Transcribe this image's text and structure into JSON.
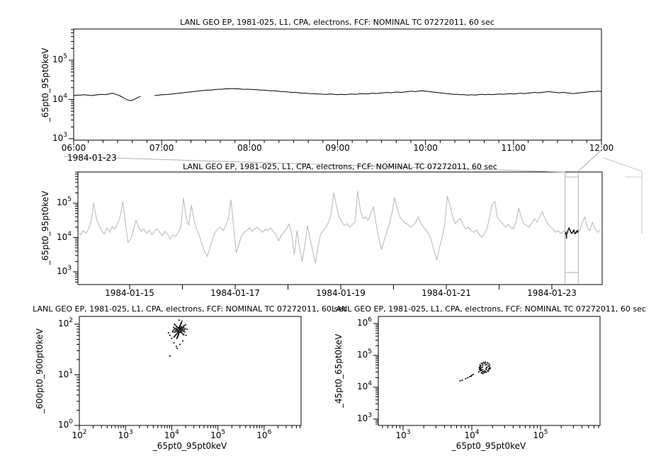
{
  "window": {
    "background": "#ffffff",
    "foreground": "#000000"
  },
  "colors": {
    "context_data": "#b6b6b6",
    "overview_overlay": "#b0b0b0",
    "highlight_data": "#000000"
  },
  "panels": {
    "zoom": {
      "title": "LANL GEO EP, 1981-025, L1, CPA, electrons, FCF: NOMINAL TC 07272011, 60 sec",
      "ylabel": "_65pt0_95pt0keV",
      "x_tick_labels": [
        "06:00",
        "07:00",
        "08:00",
        "09:00",
        "10:00",
        "11:00",
        "12:00"
      ],
      "x_context_label": "1984-01-23",
      "y_tick_exponents": [
        3,
        4,
        5
      ]
    },
    "context": {
      "title": "LANL GEO EP, 1981-025, L1, CPA, electrons, FCF: NOMINAL TC 07272011, 60 sec",
      "ylabel": "_65pt0_95pt0keV",
      "x_tick_labels": [
        "1984-01-15",
        "1984-01-17",
        "1984-01-19",
        "1984-01-21",
        "1984-01-23"
      ],
      "x_tick_days": [
        15,
        17,
        19,
        21,
        23
      ],
      "y_tick_exponents": [
        3,
        4,
        5
      ]
    },
    "scatter_left": {
      "title": "LANL GEO EP, 1981-025, L1, CPA, electrons, FCF: NOMINAL TC 07272011, 60 sec",
      "xlabel": "_65pt0_95pt0keV",
      "ylabel": "_600pt0_900pt0keV",
      "x_tick_exponents": [
        2,
        3,
        4,
        5,
        6
      ],
      "y_tick_exponents": [
        0,
        1,
        2
      ]
    },
    "scatter_right": {
      "title": "LANL GEO EP, 1981-025, L1, CPA, electrons, FCF: NOMINAL TC 07272011, 60 sec",
      "xlabel": "_65pt0_95pt0keV",
      "ylabel": "_45pt0_65pt0keV",
      "x_tick_exponents": [
        3,
        4,
        5
      ],
      "y_tick_exponents": [
        3,
        4,
        5,
        6
      ]
    }
  },
  "chart_data": [
    {
      "type": "line",
      "title": "LANL GEO EP, 1981-025, L1, CPA, electrons, FCF: NOMINAL TC 07272011, 60 sec",
      "ylabel": "_65pt0_95pt0keV",
      "x_unit": "hours UT on 1984-01-23",
      "xlim": [
        6,
        12
      ],
      "ylim_log10": [
        2.96,
        5.79
      ],
      "x_start": 6,
      "x_step": 0.04,
      "values_log10": [
        4.1,
        4.11,
        4.11,
        4.12,
        4.11,
        4.1,
        4.11,
        4.12,
        4.13,
        4.12,
        4.14,
        4.16,
        4.13,
        4.1,
        4.05,
        4.0,
        3.97,
        3.99,
        4.04,
        4.08,
        null,
        null,
        null,
        4.1,
        4.11,
        4.12,
        4.12,
        4.13,
        4.14,
        4.15,
        4.16,
        4.17,
        4.18,
        4.19,
        4.2,
        4.21,
        4.22,
        4.23,
        4.24,
        4.24,
        4.25,
        4.26,
        4.26,
        4.27,
        4.27,
        4.28,
        4.27,
        4.27,
        4.26,
        4.26,
        4.26,
        4.25,
        4.25,
        4.24,
        4.24,
        4.23,
        4.22,
        4.22,
        4.21,
        4.2,
        4.2,
        4.19,
        4.18,
        4.18,
        4.17,
        4.16,
        4.16,
        4.15,
        4.15,
        4.14,
        4.14,
        4.13,
        4.13,
        4.14,
        4.13,
        4.12,
        4.13,
        4.12,
        4.13,
        4.14,
        4.13,
        4.14,
        4.15,
        4.14,
        4.15,
        4.16,
        4.15,
        4.16,
        4.17,
        4.18,
        4.17,
        4.18,
        4.19,
        4.18,
        4.19,
        4.2,
        4.21,
        4.2,
        4.21,
        4.22,
        4.21,
        4.2,
        4.19,
        4.18,
        4.17,
        4.16,
        4.15,
        4.14,
        4.13,
        4.13,
        4.12,
        4.12,
        4.11,
        4.12,
        4.11,
        4.12,
        4.13,
        4.12,
        4.13,
        4.12,
        4.13,
        4.14,
        4.13,
        4.14,
        4.15,
        4.14,
        4.15,
        4.16,
        4.15,
        4.16,
        4.17,
        4.18,
        4.17,
        4.18,
        4.19,
        4.2,
        4.19,
        4.18,
        4.17,
        4.18,
        4.17,
        4.16,
        4.15,
        4.16,
        4.17,
        4.18,
        4.19,
        4.2,
        4.2,
        4.21,
        4.2
      ]
    },
    {
      "type": "line",
      "title": "LANL GEO EP, 1981-025, L1, CPA, electrons, FCF: NOMINAL TC 07272011, 60 sec",
      "ylabel": "_65pt0_95pt0keV",
      "x_unit": "day of 1984-01",
      "xlim": [
        14.02,
        23.95
      ],
      "ylim_log10": [
        2.63,
        5.91
      ],
      "x_start": 14.02,
      "x_step": 0.05,
      "highlight_interval_days": [
        23.25,
        23.5
      ],
      "values_log10": [
        4.15,
        4.08,
        4.2,
        4.12,
        4.25,
        4.45,
        5.0,
        4.55,
        4.35,
        4.2,
        4.1,
        4.28,
        4.15,
        4.32,
        4.25,
        4.4,
        4.6,
        5.05,
        4.4,
        3.85,
        3.95,
        4.2,
        4.5,
        4.3,
        4.18,
        4.25,
        4.12,
        4.22,
        4.08,
        4.18,
        4.25,
        4.15,
        4.05,
        4.18,
        4.1,
        3.95,
        4.08,
        4.02,
        4.15,
        4.3,
        5.15,
        4.6,
        4.35,
        4.95,
        4.5,
        4.25,
        4.05,
        3.8,
        3.6,
        3.45,
        3.7,
        3.95,
        4.15,
        4.25,
        4.3,
        4.2,
        4.35,
        4.55,
        5.1,
        4.3,
        3.55,
        3.8,
        4.05,
        4.15,
        4.2,
        4.28,
        4.18,
        4.25,
        4.3,
        4.22,
        4.15,
        4.25,
        4.2,
        4.28,
        4.18,
        4.1,
        3.9,
        4.05,
        4.15,
        4.25,
        4.4,
        4.1,
        3.5,
        4.2,
        3.7,
        3.3,
        3.8,
        4.35,
        3.95,
        3.6,
        3.25,
        3.75,
        4.1,
        4.2,
        4.3,
        4.45,
        4.7,
        5.3,
        4.9,
        4.6,
        4.45,
        4.35,
        4.4,
        4.3,
        4.38,
        4.45,
        5.35,
        4.8,
        4.55,
        4.6,
        4.5,
        4.7,
        4.9,
        4.4,
        4.0,
        3.65,
        3.9,
        4.15,
        4.4,
        4.7,
        5.15,
        4.85,
        4.6,
        4.5,
        4.42,
        4.38,
        4.3,
        4.35,
        4.45,
        4.6,
        4.4,
        4.3,
        4.2,
        4.1,
        3.9,
        3.6,
        3.35,
        3.7,
        4.0,
        4.4,
        5.2,
        4.95,
        4.6,
        4.4,
        4.5,
        4.55,
        4.35,
        4.25,
        4.3,
        4.2,
        4.15,
        4.22,
        4.1,
        4.0,
        4.12,
        4.25,
        4.6,
        4.95,
        5.05,
        4.55,
        4.5,
        4.4,
        4.3,
        4.38,
        4.3,
        4.25,
        4.45,
        4.85,
        4.6,
        4.4,
        4.35,
        4.3,
        4.42,
        4.55,
        4.45,
        4.6,
        4.75,
        4.55,
        4.4,
        4.3,
        4.25,
        4.15,
        4.2,
        4.12,
        4.18,
        4.15,
        4.25,
        4.1,
        4.22,
        4.14,
        4.18,
        4.4,
        4.6,
        4.3,
        4.2,
        4.45,
        4.25,
        4.15,
        4.22
      ]
    },
    {
      "type": "scatter",
      "title": "LANL GEO EP, 1981-025, L1, CPA, electrons, FCF: NOMINAL TC 07272011, 60 sec",
      "xlabel": "_65pt0_95pt0keV",
      "ylabel": "_600pt0_900pt0keV",
      "xlim_log10": [
        2,
        6.8
      ],
      "ylim_log10": [
        0,
        2.15
      ],
      "points_log10": [
        [
          4.16,
          1.88
        ],
        [
          4.18,
          1.89
        ],
        [
          4.14,
          1.87
        ],
        [
          4.17,
          1.91
        ],
        [
          4.15,
          1.85
        ],
        [
          4.19,
          1.86
        ],
        [
          4.13,
          1.9
        ],
        [
          4.16,
          1.92
        ],
        [
          4.17,
          1.84
        ],
        [
          4.14,
          1.93
        ],
        [
          4.2,
          1.9
        ],
        [
          4.12,
          1.86
        ],
        [
          4.18,
          1.94
        ],
        [
          4.15,
          1.82
        ],
        [
          4.21,
          1.87
        ],
        [
          4.11,
          1.89
        ],
        [
          4.19,
          1.92
        ],
        [
          4.13,
          1.83
        ],
        [
          4.17,
          1.95
        ],
        [
          4.15,
          1.8
        ],
        [
          4.22,
          1.92
        ],
        [
          4.1,
          1.91
        ],
        [
          4.2,
          1.84
        ],
        [
          4.12,
          1.94
        ],
        [
          4.23,
          1.88
        ],
        [
          4.09,
          1.85
        ],
        [
          4.21,
          1.95
        ],
        [
          4.11,
          1.81
        ],
        [
          4.18,
          1.97
        ],
        [
          4.14,
          1.78
        ],
        [
          4.24,
          1.9
        ],
        [
          4.08,
          1.88
        ],
        [
          4.22,
          1.83
        ],
        [
          4.1,
          1.96
        ],
        [
          4.25,
          1.86
        ],
        [
          4.07,
          1.92
        ],
        [
          4.23,
          1.93
        ],
        [
          4.09,
          1.79
        ],
        [
          4.19,
          1.99
        ],
        [
          4.13,
          1.76
        ],
        [
          4.26,
          1.93
        ],
        [
          4.06,
          1.84
        ],
        [
          4.24,
          1.81
        ],
        [
          4.08,
          1.98
        ],
        [
          4.27,
          1.89
        ],
        [
          4.05,
          1.9
        ],
        [
          4.25,
          1.96
        ],
        [
          4.07,
          1.77
        ],
        [
          4.2,
          2.01
        ],
        [
          4.12,
          1.74
        ],
        [
          4.28,
          1.85
        ],
        [
          4.04,
          1.94
        ],
        [
          4.26,
          1.79
        ],
        [
          4.06,
          2.0
        ],
        [
          4.29,
          1.91
        ],
        [
          4.03,
          1.87
        ],
        [
          4.27,
          1.97
        ],
        [
          4.05,
          1.75
        ],
        [
          4.21,
          2.03
        ],
        [
          4.11,
          1.72
        ],
        [
          4.0,
          1.72
        ],
        [
          3.96,
          1.78
        ],
        [
          4.05,
          1.63
        ],
        [
          4.1,
          1.56
        ],
        [
          4.18,
          1.6
        ],
        [
          4.24,
          1.67
        ],
        [
          4.02,
          1.85
        ],
        [
          3.93,
          1.83
        ],
        [
          4.31,
          1.78
        ],
        [
          4.33,
          1.9
        ],
        [
          4.3,
          1.99
        ],
        [
          4.16,
          2.08
        ],
        [
          4.22,
          2.06
        ],
        [
          3.96,
          1.37
        ],
        [
          4.12,
          1.52
        ]
      ]
    },
    {
      "type": "scatter",
      "title": "LANL GEO EP, 1981-025, L1, CPA, electrons, FCF: NOMINAL TC 07272011, 60 sec",
      "xlabel": "_65pt0_95pt0keV",
      "ylabel": "_45pt0_65pt0keV",
      "xlim_log10": [
        2.64,
        5.87
      ],
      "ylim_log10": [
        2.8,
        6.22
      ],
      "points_log10": [
        [
          4.26,
          4.62
        ],
        [
          4.26,
          4.68
        ],
        [
          4.25,
          4.73
        ],
        [
          4.23,
          4.77
        ],
        [
          4.2,
          4.79
        ],
        [
          4.17,
          4.78
        ],
        [
          4.14,
          4.75
        ],
        [
          4.12,
          4.7
        ],
        [
          4.12,
          4.64
        ],
        [
          4.12,
          4.58
        ],
        [
          4.13,
          4.52
        ],
        [
          4.15,
          4.48
        ],
        [
          4.18,
          4.46
        ],
        [
          4.21,
          4.47
        ],
        [
          4.24,
          4.5
        ],
        [
          4.25,
          4.55
        ],
        [
          4.27,
          4.59
        ],
        [
          4.24,
          4.66
        ],
        [
          4.22,
          4.72
        ],
        [
          4.19,
          4.75
        ],
        [
          4.16,
          4.73
        ],
        [
          4.13,
          4.67
        ],
        [
          4.13,
          4.6
        ],
        [
          4.14,
          4.54
        ],
        [
          4.17,
          4.49
        ],
        [
          4.2,
          4.48
        ],
        [
          4.23,
          4.52
        ],
        [
          4.25,
          4.58
        ],
        [
          4.22,
          4.63
        ],
        [
          4.2,
          4.7
        ],
        [
          4.16,
          4.68
        ],
        [
          4.15,
          4.62
        ],
        [
          4.16,
          4.55
        ],
        [
          4.19,
          4.52
        ],
        [
          4.21,
          4.56
        ],
        [
          4.21,
          4.6
        ],
        [
          4.13,
          4.55
        ],
        [
          4.12,
          4.52
        ],
        [
          4.11,
          4.57
        ],
        [
          4.11,
          4.62
        ],
        [
          4.14,
          4.45
        ],
        [
          4.16,
          4.43
        ],
        [
          4.1,
          4.48
        ],
        [
          4.02,
          4.4
        ],
        [
          4.0,
          4.37
        ],
        [
          3.97,
          4.33
        ],
        [
          3.94,
          4.3
        ],
        [
          3.99,
          4.35
        ],
        [
          3.91,
          4.27
        ],
        [
          3.86,
          4.22
        ],
        [
          3.83,
          4.2
        ]
      ]
    }
  ]
}
